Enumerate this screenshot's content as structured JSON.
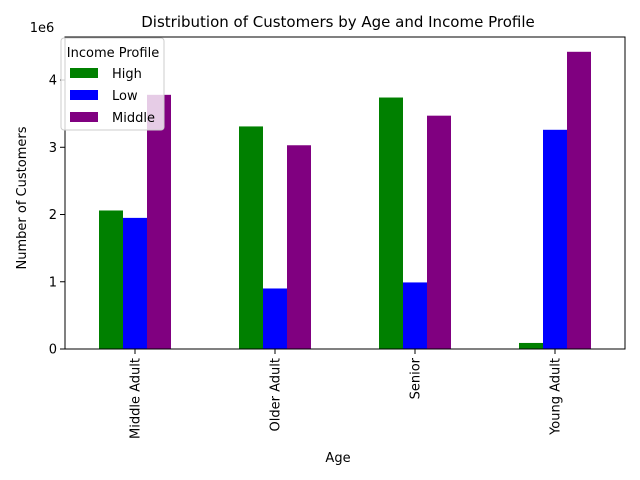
{
  "chart_data": {
    "type": "bar",
    "title": "Distribution of Customers by Age and Income Profile",
    "xlabel": "Age",
    "ylabel": "Number of Customers",
    "y_offset_label": "1e6",
    "categories": [
      "Middle Adult",
      "Older Adult",
      "Senior",
      "Young Adult"
    ],
    "series": [
      {
        "name": "High",
        "color": "#008000",
        "values": [
          2060000,
          3310000,
          3740000,
          90000
        ]
      },
      {
        "name": "Low",
        "color": "#0000ff",
        "values": [
          1950000,
          900000,
          990000,
          3260000
        ]
      },
      {
        "name": "Middle",
        "color": "#800080",
        "values": [
          3780000,
          3030000,
          3470000,
          4420000
        ]
      }
    ],
    "ylim": [
      0,
      4640000
    ],
    "yticks": [
      0,
      1,
      2,
      3,
      4
    ],
    "ytick_scale": 1000000,
    "legend_title": "Income Profile",
    "legend_position": "upper-left",
    "grid": false
  }
}
